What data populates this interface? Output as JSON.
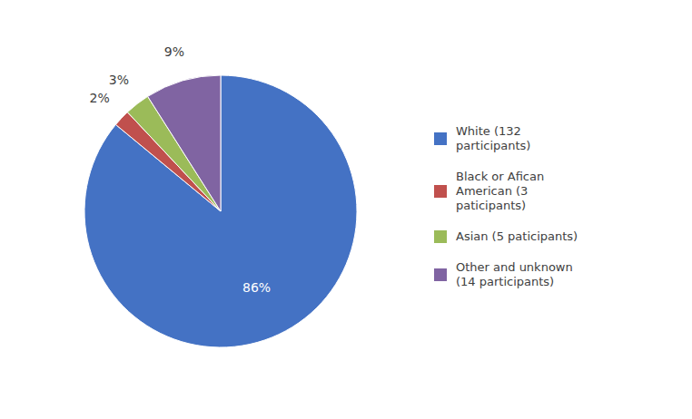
{
  "chart_data": {
    "type": "pie",
    "categories": [
      "White (132\nparticipants)",
      "Black or Afican\nAmerican (3\npaticipants)",
      "Asian (5 paticipants)",
      "Other and unknown\n(14 participants)"
    ],
    "values": [
      86,
      2,
      3,
      9
    ],
    "value_labels": [
      "86%",
      "2%",
      "3%",
      "9%"
    ],
    "colors": [
      "#4472C4",
      "#C0504D",
      "#9BBB59",
      "#8064A2"
    ],
    "data_labels": true,
    "legend": "right"
  }
}
